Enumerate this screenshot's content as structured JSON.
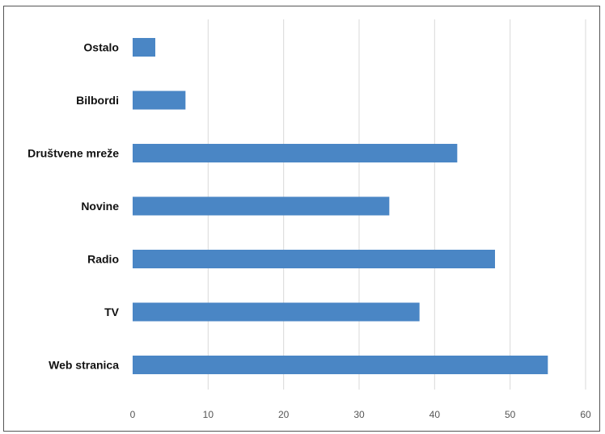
{
  "chart_data": {
    "type": "bar",
    "orientation": "horizontal",
    "categories": [
      "Ostalo",
      "Bilbordi",
      "Društvene mreže",
      "Novine",
      "Radio",
      "TV",
      "Web stranica"
    ],
    "values": [
      3,
      7,
      43,
      34,
      48,
      38,
      55
    ],
    "title": "",
    "xlabel": "",
    "ylabel": "",
    "xlim": [
      0,
      60
    ],
    "xticks": [
      "0",
      "10",
      "20",
      "30",
      "40",
      "50",
      "60"
    ],
    "grid": "vertical",
    "legend": "none",
    "colors": {
      "bar": "#4a86c5",
      "grid": "#d9d9d9"
    }
  }
}
